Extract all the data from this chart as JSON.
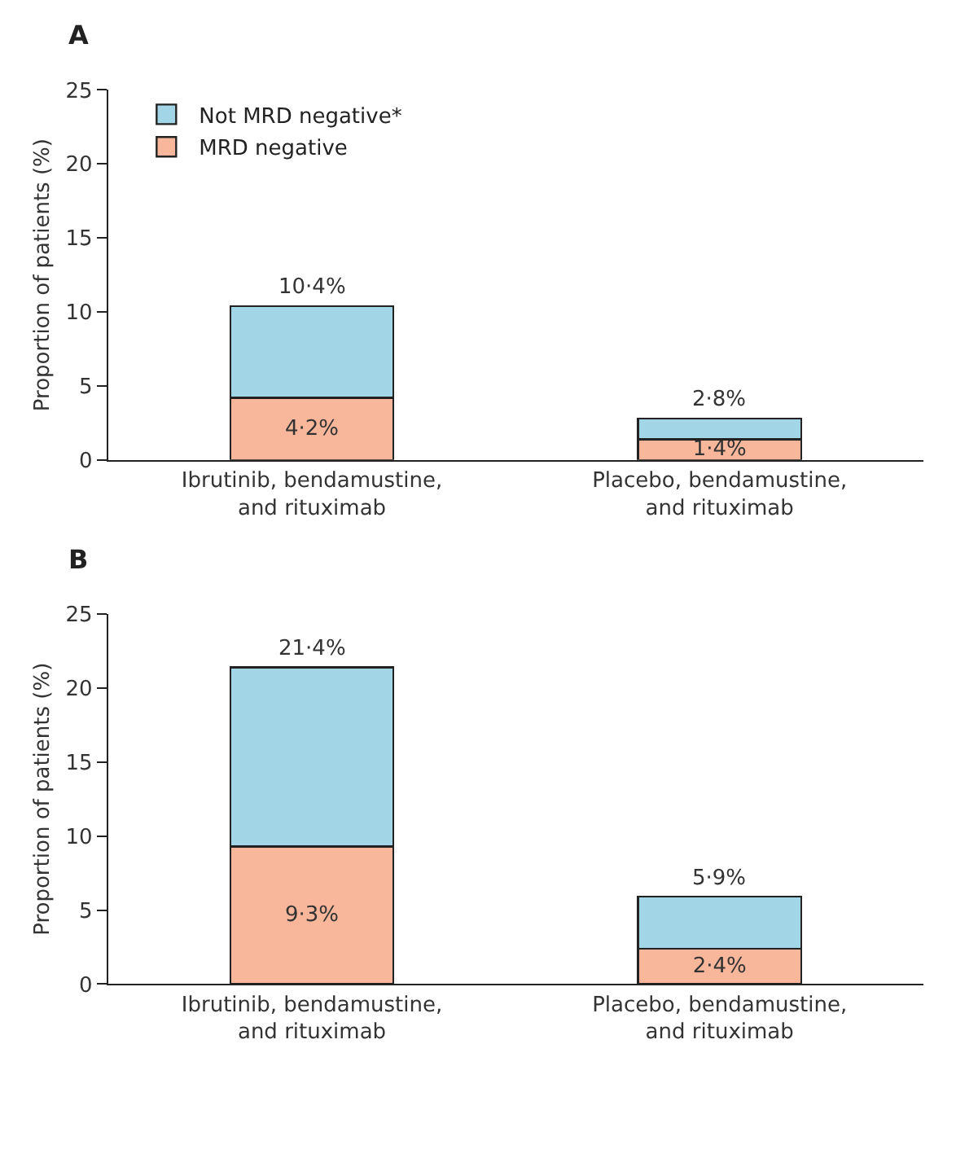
{
  "chart_data": [
    {
      "type": "bar",
      "title": "A",
      "ylabel": "Proportion of patients (%)",
      "stacked": true,
      "legend": "top left",
      "ylim": [
        0,
        25
      ],
      "yticks": [
        0,
        5,
        10,
        15,
        20,
        25
      ],
      "grid": false,
      "categories": [
        "Ibrutinib, bendamustine,\nand rituximab",
        "Placebo, bendamustine,\nand rituximab"
      ],
      "series": [
        {
          "name": "MRD negative",
          "color": "#f8b79b",
          "values": [
            4.2,
            1.4
          ],
          "value_labels": [
            "4·2%",
            "1·4%"
          ]
        },
        {
          "name": "Not MRD negative*",
          "color": "#a2d6e7",
          "values": [
            6.2,
            1.4
          ]
        }
      ],
      "totals": [
        "10·4%",
        "2·8%"
      ]
    },
    {
      "type": "bar",
      "title": "B",
      "ylabel": "Proportion of patients (%)",
      "stacked": true,
      "ylim": [
        0,
        25
      ],
      "yticks": [
        0,
        5,
        10,
        15,
        20,
        25
      ],
      "grid": false,
      "categories": [
        "Ibrutinib, bendamustine,\nand rituximab",
        "Placebo, bendamustine,\nand rituximab"
      ],
      "series": [
        {
          "color": "#f8b79b",
          "values": [
            9.3,
            2.4
          ],
          "value_labels": [
            "9·3%",
            "2·4%"
          ]
        },
        {
          "color": "#a2d6e7",
          "values": [
            12.1,
            3.5
          ]
        }
      ],
      "totals": [
        "21·4%",
        "5·9%"
      ]
    }
  ]
}
